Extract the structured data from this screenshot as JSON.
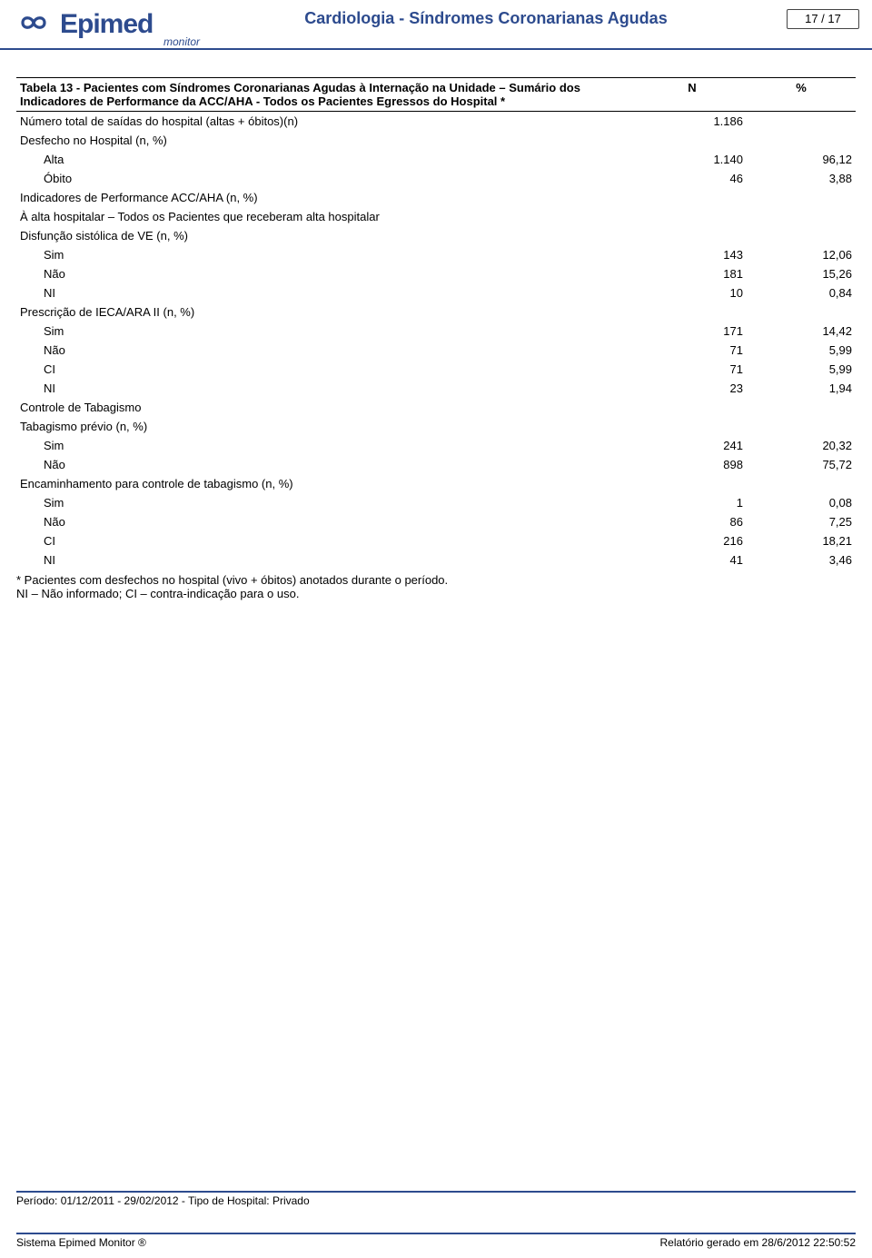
{
  "colors": {
    "accent": "#2d4b8e",
    "text": "#000000",
    "background": "#ffffff"
  },
  "header": {
    "logo_brand": "Epimed",
    "logo_sub": "monitor",
    "title": "Cardiologia - Síndromes Coronarianas Agudas",
    "pager": "17 / 17"
  },
  "table": {
    "title": "Tabela 13 - Pacientes com Síndromes Coronarianas Agudas à Internação na Unidade – Sumário dos Indicadores de Performance da ACC/AHA - Todos os Pacientes Egressos do Hospital *",
    "columns": {
      "n": "N",
      "pct": "%"
    },
    "rows": [
      {
        "label": "Número total de saídas do hospital (altas + óbitos)(n)",
        "n": "1.186",
        "pct": "",
        "indent": 0
      },
      {
        "label": "Desfecho no Hospital (n, %)",
        "n": "",
        "pct": "",
        "indent": 0
      },
      {
        "label": "Alta",
        "n": "1.140",
        "pct": "96,12",
        "indent": 1
      },
      {
        "label": "Óbito",
        "n": "46",
        "pct": "3,88",
        "indent": 1
      },
      {
        "label": "Indicadores de Performance ACC/AHA (n, %)",
        "n": "",
        "pct": "",
        "indent": 0
      },
      {
        "label": "À alta hospitalar – Todos os Pacientes que receberam alta hospitalar",
        "n": "",
        "pct": "",
        "indent": 0
      },
      {
        "label": "Disfunção sistólica de VE (n, %)",
        "n": "",
        "pct": "",
        "indent": 0
      },
      {
        "label": "Sim",
        "n": "143",
        "pct": "12,06",
        "indent": 1
      },
      {
        "label": "Não",
        "n": "181",
        "pct": "15,26",
        "indent": 1
      },
      {
        "label": "NI",
        "n": "10",
        "pct": "0,84",
        "indent": 1
      },
      {
        "label": "Prescrição de IECA/ARA II (n, %)",
        "n": "",
        "pct": "",
        "indent": 0
      },
      {
        "label": "Sim",
        "n": "171",
        "pct": "14,42",
        "indent": 1
      },
      {
        "label": "Não",
        "n": "71",
        "pct": "5,99",
        "indent": 1
      },
      {
        "label": "CI",
        "n": "71",
        "pct": "5,99",
        "indent": 1
      },
      {
        "label": "NI",
        "n": "23",
        "pct": "1,94",
        "indent": 1
      },
      {
        "label": "Controle de Tabagismo",
        "n": "",
        "pct": "",
        "indent": 0
      },
      {
        "label": "Tabagismo prévio (n, %)",
        "n": "",
        "pct": "",
        "indent": 0
      },
      {
        "label": "Sim",
        "n": "241",
        "pct": "20,32",
        "indent": 1
      },
      {
        "label": "Não",
        "n": "898",
        "pct": "75,72",
        "indent": 1
      },
      {
        "label": "Encaminhamento para controle de tabagismo (n, %)",
        "n": "",
        "pct": "",
        "indent": 0
      },
      {
        "label": "Sim",
        "n": "1",
        "pct": "0,08",
        "indent": 1
      },
      {
        "label": "Não",
        "n": "86",
        "pct": "7,25",
        "indent": 1
      },
      {
        "label": "CI",
        "n": "216",
        "pct": "18,21",
        "indent": 1
      },
      {
        "label": "NI",
        "n": "41",
        "pct": "3,46",
        "indent": 1
      }
    ],
    "footnotes": [
      "* Pacientes com desfechos no hospital (vivo + óbitos) anotados durante o período.",
      "NI – Não informado; CI – contra-indicação para o uso."
    ]
  },
  "footer": {
    "period": "Período: 01/12/2011 - 29/02/2012 - Tipo de Hospital: Privado",
    "system": "Sistema Epimed Monitor ®",
    "generated": "Relatório gerado em 28/6/2012 22:50:52"
  }
}
